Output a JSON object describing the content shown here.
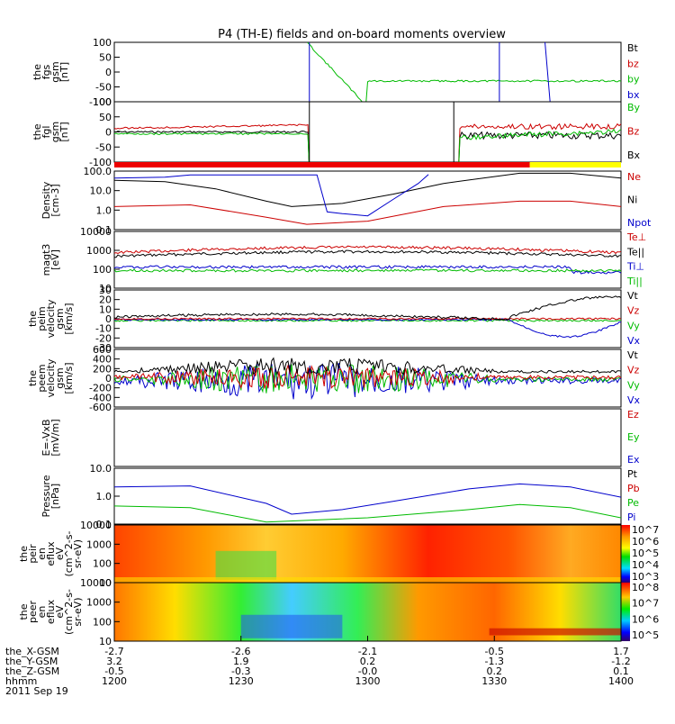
{
  "chart_data": {
    "type": "line",
    "title": "P4 (TH-E) fields and on-board moments overview",
    "panels": [
      {
        "id": "fgs",
        "ylabel": [
          "the",
          "fgs",
          "gsm",
          "[nT]"
        ],
        "yticks": [
          "100",
          "50",
          "0",
          "-50",
          "-100"
        ],
        "legend": [
          {
            "label": "Bt",
            "color": "#000000"
          },
          {
            "label": "bz",
            "color": "#cc0000"
          },
          {
            "label": "by",
            "color": "#00bb00"
          },
          {
            "label": "bx",
            "color": "#0000cc"
          }
        ]
      },
      {
        "id": "fgl",
        "ylabel": [
          "the",
          "fgl",
          "gsm",
          "[nT]"
        ],
        "yticks": [
          "100",
          "50",
          "0",
          "-50",
          "-100"
        ],
        "legend": [
          {
            "label": "By",
            "color": "#00bb00"
          },
          {
            "label": "Bz",
            "color": "#cc0000"
          },
          {
            "label": "Bx",
            "color": "#000000"
          }
        ]
      },
      {
        "id": "density",
        "ylabel": [
          "Density",
          "[cm-3]"
        ],
        "yticks": [
          "100.0",
          "10.0",
          "1.0",
          "0.1"
        ],
        "legend": [
          {
            "label": "Ne",
            "color": "#cc0000"
          },
          {
            "label": "Ni",
            "color": "#000000"
          },
          {
            "label": "Npot",
            "color": "#0000cc"
          }
        ]
      },
      {
        "id": "temp",
        "ylabel": [
          "magt3",
          "[eV]"
        ],
        "yticks": [
          "10000",
          "1000",
          "100",
          "10"
        ],
        "legend": [
          {
            "label": "Te⊥",
            "color": "#cc0000"
          },
          {
            "label": "Te||",
            "color": "#000000"
          },
          {
            "label": "Ti⊥",
            "color": "#0000cc"
          },
          {
            "label": "Ti||",
            "color": "#00bb00"
          }
        ]
      },
      {
        "id": "peim",
        "ylabel": [
          "the",
          "peim",
          "velocity",
          "gsm",
          "[km/s]"
        ],
        "yticks": [
          "30",
          "20",
          "10",
          "0",
          "-10",
          "-20",
          "-30"
        ],
        "legend": [
          {
            "label": "Vt",
            "color": "#000000"
          },
          {
            "label": "Vz",
            "color": "#cc0000"
          },
          {
            "label": "Vy",
            "color": "#00bb00"
          },
          {
            "label": "Vx",
            "color": "#0000cc"
          }
        ]
      },
      {
        "id": "peem",
        "ylabel": [
          "the",
          "peem",
          "velocity",
          "gsm",
          "[km/s]"
        ],
        "yticks": [
          "600",
          "400",
          "200",
          "0",
          "-200",
          "-400",
          "-600"
        ],
        "legend": [
          {
            "label": "Vt",
            "color": "#000000"
          },
          {
            "label": "Vz",
            "color": "#cc0000"
          },
          {
            "label": "Vy",
            "color": "#00bb00"
          },
          {
            "label": "Vx",
            "color": "#0000cc"
          }
        ]
      },
      {
        "id": "efield",
        "ylabel": [
          "E=-VxB",
          "[mV/m]"
        ],
        "yticks": [],
        "legend": [
          {
            "label": "Ez",
            "color": "#cc0000"
          },
          {
            "label": "Ey",
            "color": "#00bb00"
          },
          {
            "label": "Ex",
            "color": "#0000cc"
          }
        ]
      },
      {
        "id": "pressure",
        "ylabel": [
          "Pressure",
          "[nPa]"
        ],
        "yticks": [
          "10.0",
          "1.0",
          "0.1"
        ],
        "legend": [
          {
            "label": "Pt",
            "color": "#000000"
          },
          {
            "label": "Pb",
            "color": "#cc0000"
          },
          {
            "label": "Pe",
            "color": "#00bb00"
          },
          {
            "label": "Pi",
            "color": "#0000cc"
          }
        ]
      },
      {
        "id": "peir",
        "ylabel": [
          "the",
          "peir",
          "en",
          "eflux",
          "eV",
          "(cm^2-s-",
          "sr-eV)"
        ],
        "yticks": [
          "10000",
          "1000",
          "100",
          "10"
        ],
        "colorbar": [
          "10^7",
          "10^6",
          "10^5",
          "10^4",
          "10^3"
        ]
      },
      {
        "id": "peer",
        "ylabel": [
          "the",
          "peer",
          "en",
          "eflux",
          "eV",
          "(cm^2-s-",
          "sr-eV)"
        ],
        "yticks": [
          "10000",
          "1000",
          "100",
          "10"
        ],
        "colorbar": [
          "10^8",
          "10^7",
          "10^6",
          "10^5"
        ]
      }
    ],
    "x_axis": {
      "row_labels": [
        "the_X-GSM",
        "the_Y-GSM",
        "the_Z-GSM",
        "hhmm",
        "2011 Sep 19"
      ],
      "columns": [
        {
          "x": "-2.7",
          "y": "3.2",
          "z": "-0.5",
          "t": "1200"
        },
        {
          "x": "-2.6",
          "y": "1.9",
          "z": "-0.3",
          "t": "1230"
        },
        {
          "x": "-2.1",
          "y": "0.2",
          "z": "-0.0",
          "t": "1300"
        },
        {
          "x": "-0.5",
          "y": "-1.3",
          "z": "0.2",
          "t": "1330"
        },
        {
          "x": "1.7",
          "y": "-1.2",
          "z": "0.1",
          "t": "1400"
        }
      ]
    },
    "series_samples": {
      "density_Ni": [
        [
          0,
          60
        ],
        [
          0.1,
          50
        ],
        [
          0.2,
          20
        ],
        [
          0.3,
          4
        ],
        [
          0.35,
          2
        ],
        [
          0.45,
          3
        ],
        [
          0.55,
          10
        ],
        [
          0.65,
          40
        ],
        [
          0.8,
          150
        ],
        [
          0.9,
          150
        ],
        [
          1,
          80
        ]
      ],
      "density_Ne": [
        [
          0,
          2
        ],
        [
          0.15,
          2.5
        ],
        [
          0.3,
          0.5
        ],
        [
          0.38,
          0.2
        ],
        [
          0.5,
          0.3
        ],
        [
          0.65,
          2
        ],
        [
          0.8,
          4
        ],
        [
          0.9,
          4
        ],
        [
          1,
          2
        ]
      ],
      "density_Npot": [
        [
          0,
          80
        ],
        [
          0.1,
          90
        ],
        [
          0.15,
          120
        ],
        [
          0.4,
          120
        ],
        [
          0.42,
          1
        ],
        [
          0.45,
          0.8
        ],
        [
          0.5,
          0.6
        ],
        [
          0.55,
          5
        ],
        [
          0.6,
          40
        ],
        [
          0.62,
          130
        ]
      ],
      "pressure_Pi": [
        [
          0,
          2.5
        ],
        [
          0.15,
          2.8
        ],
        [
          0.3,
          0.4
        ],
        [
          0.35,
          0.12
        ],
        [
          0.45,
          0.2
        ],
        [
          0.55,
          0.5
        ],
        [
          0.7,
          2
        ],
        [
          0.8,
          3.5
        ],
        [
          0.9,
          2.5
        ],
        [
          1,
          0.8
        ]
      ],
      "pressure_Pe": [
        [
          0,
          0.3
        ],
        [
          0.15,
          0.25
        ],
        [
          0.3,
          0.05
        ],
        [
          0.5,
          0.08
        ],
        [
          0.7,
          0.2
        ],
        [
          0.8,
          0.35
        ],
        [
          0.9,
          0.25
        ],
        [
          1,
          0.08
        ]
      ]
    }
  }
}
